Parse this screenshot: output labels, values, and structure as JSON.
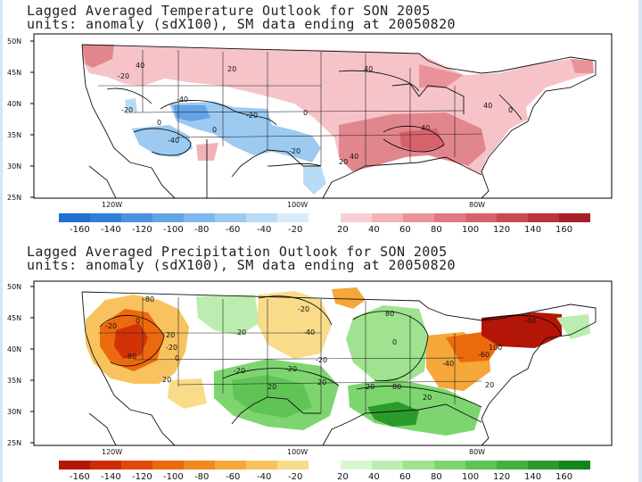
{
  "temperature": {
    "title_line1": "Lagged Averaged Temperature Outlook for SON 2005",
    "title_line2": "units: anomaly (sdX100), SM data ending at 20050820",
    "lat_labels": [
      "50N",
      "45N",
      "40N",
      "35N",
      "30N",
      "25N"
    ],
    "lon_labels": [
      "120W",
      "100W",
      "80W"
    ],
    "contour_labels": [
      "40",
      "-20",
      "20",
      "-40",
      "-20",
      "0",
      "-20",
      "0",
      "-40",
      "-20",
      "0",
      "40",
      "40",
      "0",
      "40",
      "40",
      "20"
    ],
    "colorbar_negative_labels": [
      "-160",
      "-140",
      "-120",
      "-100",
      "-80",
      "-60",
      "-40",
      "-20"
    ],
    "colorbar_positive_labels": [
      "20",
      "40",
      "60",
      "80",
      "100",
      "120",
      "140",
      "160"
    ],
    "colorbar_negative_colors": [
      "#1f6fd0",
      "#2f7ed8",
      "#4a92df",
      "#64a4e6",
      "#7fb7ec",
      "#9ccaf1",
      "#b9dcf6",
      "#d7ecfb"
    ],
    "colorbar_positive_colors": [
      "#f8d0d4",
      "#f1b3b8",
      "#e99399",
      "#e07a81",
      "#d6626b",
      "#c94a53",
      "#b9343d",
      "#a51f28"
    ]
  },
  "precipitation": {
    "title_line1": "Lagged Averaged Precipitation Outlook for SON 2005",
    "title_line2": "units: anomaly (sdX100), SM data ending at 20050820",
    "lat_labels": [
      "50N",
      "45N",
      "40N",
      "35N",
      "30N",
      "25N"
    ],
    "lon_labels": [
      "120W",
      "100W",
      "80W"
    ],
    "contour_labels": [
      "-80",
      "-20",
      "0",
      "-80",
      "20",
      "-20",
      "20",
      "-20",
      "0",
      "-40",
      "20",
      "-20",
      "20",
      "-20",
      "20",
      "-20",
      "80",
      "0",
      "20",
      "-60",
      "100",
      "-40",
      "80",
      "20",
      "-40",
      "20"
    ],
    "colorbar_negative_labels": [
      "-160",
      "-140",
      "-120",
      "-100",
      "-80",
      "-60",
      "-40",
      "-20"
    ],
    "colorbar_positive_labels": [
      "20",
      "40",
      "60",
      "80",
      "100",
      "120",
      "140",
      "160"
    ],
    "colorbar_negative_colors": [
      "#b31507",
      "#cf2a06",
      "#e2480a",
      "#ec6a0e",
      "#f08a1d",
      "#f5a73a",
      "#f8c35e",
      "#fadb8a"
    ],
    "colorbar_positive_colors": [
      "#d9f6d0",
      "#bcedb0",
      "#9fe28f",
      "#7ed570",
      "#5fc455",
      "#42b13e",
      "#2a9b2b",
      "#13851b"
    ]
  }
}
